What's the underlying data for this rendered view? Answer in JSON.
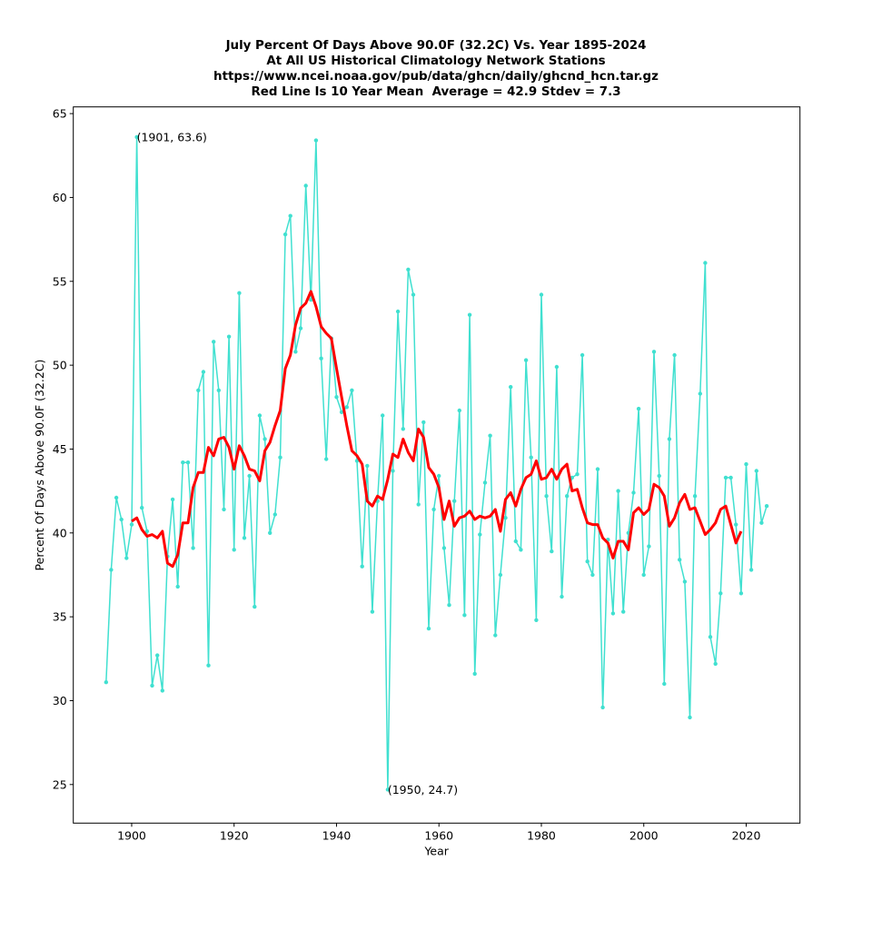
{
  "chart_data": {
    "type": "line",
    "title_lines": [
      "July Percent Of Days Above 90.0F (32.2C) Vs. Year 1895-2024",
      "At All US Historical Climatology Network Stations",
      "https://www.ncei.noaa.gov/pub/data/ghcn/daily/ghcnd_hcn.tar.gz",
      "Red Line Is 10 Year Mean  Average = 42.9 Stdev = 7.3"
    ],
    "xlabel": "Year",
    "ylabel": "Percent Of Days Above 90.0F (32.2C)",
    "xlim": [
      1888.6,
      2030.5
    ],
    "ylim": [
      22.7,
      65.4
    ],
    "xticks": [
      1900,
      1920,
      1940,
      1960,
      1980,
      2000,
      2020
    ],
    "yticks": [
      25,
      30,
      35,
      40,
      45,
      50,
      55,
      60,
      65
    ],
    "grid": false,
    "colors": {
      "annual": "#40e0d0",
      "mean": "#ff0000"
    },
    "annotations": [
      {
        "x": 1901,
        "y": 63.6,
        "text": "(1901, 63.6)"
      },
      {
        "x": 1950,
        "y": 24.7,
        "text": "(1950, 24.7)"
      }
    ],
    "series": [
      {
        "name": "Annual July % days above 90F",
        "x_start": 1895,
        "values": [
          31.1,
          37.8,
          42.1,
          40.8,
          38.5,
          40.5,
          63.6,
          41.5,
          40.1,
          30.9,
          32.7,
          30.6,
          38.6,
          42.0,
          36.8,
          44.2,
          44.2,
          39.1,
          48.5,
          49.6,
          32.1,
          51.4,
          48.5,
          41.4,
          51.7,
          39.0,
          54.3,
          39.7,
          43.4,
          35.6,
          47.0,
          45.6,
          40.0,
          41.1,
          44.5,
          57.8,
          58.9,
          50.8,
          52.2,
          60.7,
          53.9,
          63.4,
          50.4,
          44.4,
          51.6,
          48.1,
          47.2,
          47.5,
          48.5,
          44.3,
          38.0,
          44.0,
          35.3,
          41.9,
          47.0,
          24.7,
          43.7,
          53.2,
          46.2,
          55.7,
          54.2,
          41.7,
          46.6,
          34.3,
          41.4,
          43.4,
          39.1,
          35.7,
          41.9,
          47.3,
          35.1,
          53.0,
          31.6,
          39.9,
          43.0,
          45.8,
          33.9,
          37.5,
          40.9,
          48.7,
          39.5,
          39.0,
          50.3,
          44.5,
          34.8,
          54.2,
          42.2,
          38.9,
          49.9,
          36.2,
          42.2,
          43.3,
          43.5,
          50.6,
          38.3,
          37.5,
          43.8,
          29.6,
          39.6,
          35.2,
          42.5,
          35.3,
          40.0,
          42.4,
          47.4,
          37.5,
          39.2,
          50.8,
          43.4,
          31.0,
          45.6,
          50.6,
          38.4,
          37.1,
          29.0,
          42.2,
          48.3,
          56.1,
          33.8,
          32.2,
          36.4,
          43.3,
          43.3,
          40.5,
          36.4,
          44.1,
          37.8,
          43.7,
          40.6,
          41.6
        ]
      },
      {
        "name": "10 Year Mean",
        "x_start": 1900,
        "values": [
          40.7,
          40.9,
          40.2,
          39.8,
          39.9,
          39.7,
          40.1,
          38.2,
          38.0,
          38.7,
          40.6,
          40.6,
          42.7,
          43.6,
          43.6,
          45.1,
          44.6,
          45.6,
          45.7,
          45.1,
          43.8,
          45.2,
          44.6,
          43.8,
          43.7,
          43.1,
          44.9,
          45.4,
          46.4,
          47.3,
          49.8,
          50.6,
          52.4,
          53.4,
          53.7,
          54.4,
          53.5,
          52.3,
          51.9,
          51.6,
          49.8,
          48.1,
          46.4,
          44.9,
          44.6,
          44.1,
          41.9,
          41.6,
          42.2,
          42.0,
          43.2,
          44.7,
          44.5,
          45.6,
          44.8,
          44.3,
          46.2,
          45.7,
          43.9,
          43.5,
          42.7,
          40.8,
          41.9,
          40.4,
          40.9,
          41.0,
          41.3,
          40.8,
          41.0,
          40.9,
          41.0,
          41.4,
          40.1,
          42.0,
          42.4,
          41.6,
          42.6,
          43.3,
          43.5,
          44.3,
          43.2,
          43.3,
          43.8,
          43.2,
          43.8,
          44.1,
          42.5,
          42.6,
          41.5,
          40.6,
          40.5,
          40.5,
          39.7,
          39.4,
          38.5,
          39.5,
          39.5,
          39.0,
          41.2,
          41.5,
          41.1,
          41.4,
          42.9,
          42.7,
          42.2,
          40.4,
          40.9,
          41.8,
          42.3,
          41.4,
          41.5,
          40.7,
          39.9,
          40.2,
          40.6,
          41.4,
          41.6,
          40.5,
          39.4,
          40.1
        ]
      }
    ]
  }
}
